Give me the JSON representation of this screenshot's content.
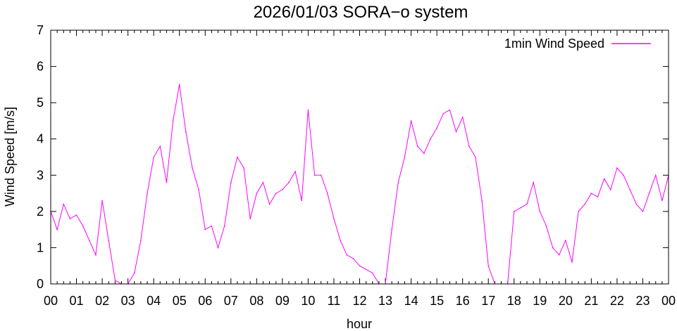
{
  "chart_data": {
    "type": "line",
    "title": "2026/01/03 SORA−o system",
    "xlabel": "hour",
    "ylabel": "Wind Speed [m/s]",
    "xlim": [
      0,
      24
    ],
    "ylim": [
      0,
      7
    ],
    "x_ticks": [
      "00",
      "01",
      "02",
      "03",
      "04",
      "05",
      "06",
      "07",
      "08",
      "09",
      "10",
      "11",
      "12",
      "13",
      "14",
      "15",
      "16",
      "17",
      "18",
      "19",
      "20",
      "21",
      "22",
      "23",
      "00"
    ],
    "y_ticks": [
      "0",
      "1",
      "2",
      "3",
      "4",
      "5",
      "6",
      "7"
    ],
    "grid": false,
    "legend_position": "top-right",
    "series": [
      {
        "name": "1min Wind Speed",
        "color": "#ff00ff",
        "x": [
          0.0,
          0.25,
          0.5,
          0.75,
          1.0,
          1.25,
          1.5,
          1.75,
          2.0,
          2.25,
          2.5,
          2.75,
          3.0,
          3.25,
          3.5,
          3.75,
          4.0,
          4.25,
          4.5,
          4.75,
          5.0,
          5.25,
          5.5,
          5.75,
          6.0,
          6.25,
          6.5,
          6.75,
          7.0,
          7.25,
          7.5,
          7.75,
          8.0,
          8.25,
          8.5,
          8.75,
          9.0,
          9.25,
          9.5,
          9.75,
          10.0,
          10.25,
          10.5,
          10.75,
          11.0,
          11.25,
          11.5,
          11.75,
          12.0,
          12.25,
          12.5,
          12.75,
          13.0,
          13.25,
          13.5,
          13.75,
          14.0,
          14.25,
          14.5,
          14.75,
          15.0,
          15.25,
          15.5,
          15.75,
          16.0,
          16.25,
          16.5,
          16.75,
          17.0,
          17.25,
          17.5,
          17.75,
          18.0,
          18.25,
          18.5,
          18.75,
          19.0,
          19.25,
          19.5,
          19.75,
          20.0,
          20.25,
          20.5,
          20.75,
          21.0,
          21.25,
          21.5,
          21.75,
          22.0,
          22.25,
          22.5,
          22.75,
          23.0,
          23.25,
          23.5,
          23.75,
          24.0
        ],
        "values": [
          2.0,
          1.5,
          2.2,
          1.8,
          1.9,
          1.6,
          1.2,
          0.8,
          2.3,
          1.2,
          0.1,
          0.0,
          0.0,
          0.3,
          1.2,
          2.5,
          3.5,
          3.8,
          2.8,
          4.5,
          5.5,
          4.2,
          3.2,
          2.6,
          1.5,
          1.6,
          1.0,
          1.6,
          2.8,
          3.5,
          3.2,
          1.8,
          2.5,
          2.8,
          2.2,
          2.5,
          2.6,
          2.8,
          3.1,
          2.3,
          4.8,
          3.0,
          3.0,
          2.5,
          1.8,
          1.2,
          0.8,
          0.7,
          0.5,
          0.4,
          0.3,
          0.0,
          0.0,
          1.5,
          2.8,
          3.5,
          4.5,
          3.8,
          3.6,
          4.0,
          4.3,
          4.7,
          4.8,
          4.2,
          4.6,
          3.8,
          3.5,
          2.3,
          0.5,
          0.0,
          0.0,
          0.0,
          2.0,
          2.1,
          2.2,
          2.8,
          2.0,
          1.6,
          1.0,
          0.8,
          1.2,
          0.6,
          2.0,
          2.2,
          2.5,
          2.4,
          2.9,
          2.6,
          3.2,
          3.0,
          2.6,
          2.2,
          2.0,
          2.5,
          3.0,
          2.3,
          3.0
        ]
      }
    ]
  }
}
